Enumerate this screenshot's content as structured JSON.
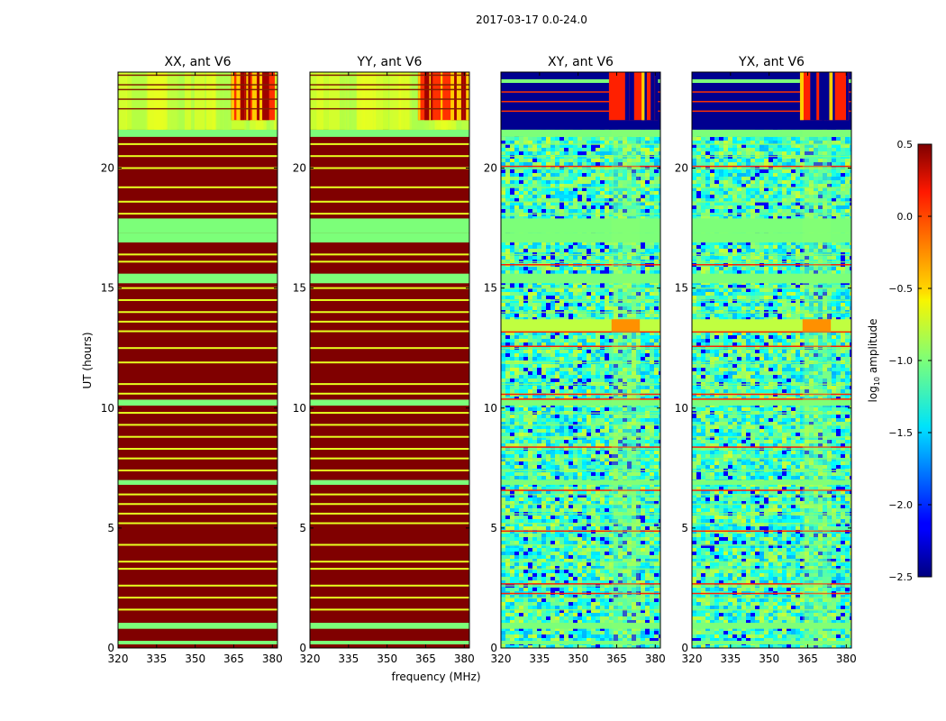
{
  "figure": {
    "suptitle": "2017-03-17 0.0-24.0",
    "ylabel": "UT (hours)",
    "xlabel": "frequency (MHz)"
  },
  "chart_data": [
    {
      "type": "heatmap",
      "title": "XX, ant V6",
      "xlim": [
        320,
        382
      ],
      "ylim": [
        0,
        24
      ],
      "xticks": [
        320,
        335,
        350,
        365,
        380
      ],
      "xtick_labels": [
        "320",
        "335",
        "350",
        "365",
        "380"
      ],
      "yticks": [
        0,
        5,
        10,
        15,
        20
      ],
      "ytick_labels": [
        "0",
        "5",
        "10",
        "15",
        "20"
      ],
      "pattern": "autocorr"
    },
    {
      "type": "heatmap",
      "title": "YY, ant V6",
      "xlim": [
        320,
        382
      ],
      "ylim": [
        0,
        24
      ],
      "xticks": [
        320,
        335,
        350,
        365,
        380
      ],
      "xtick_labels": [
        "320",
        "335",
        "350",
        "365",
        "380"
      ],
      "yticks": [
        0,
        5,
        10,
        15,
        20
      ],
      "ytick_labels": [
        "0",
        "5",
        "10",
        "15",
        "20"
      ],
      "pattern": "autocorr"
    },
    {
      "type": "heatmap",
      "title": "XY, ant V6",
      "xlim": [
        320,
        382
      ],
      "ylim": [
        0,
        24
      ],
      "xticks": [
        320,
        335,
        350,
        365,
        380
      ],
      "xtick_labels": [
        "320",
        "335",
        "350",
        "365",
        "380"
      ],
      "yticks": [
        0,
        5,
        10,
        15,
        20
      ],
      "ytick_labels": [
        "0",
        "5",
        "10",
        "15",
        "20"
      ],
      "pattern": "crosscorr"
    },
    {
      "type": "heatmap",
      "title": "YX, ant V6",
      "xlim": [
        320,
        382
      ],
      "ylim": [
        0,
        24
      ],
      "xticks": [
        320,
        335,
        350,
        365,
        380
      ],
      "xtick_labels": [
        "320",
        "335",
        "350",
        "365",
        "380"
      ],
      "yticks": [
        0,
        5,
        10,
        15,
        20
      ],
      "ytick_labels": [
        "0",
        "5",
        "10",
        "15",
        "20"
      ],
      "pattern": "crosscorr"
    }
  ],
  "colorbar": {
    "label": "log",
    "label_sub": "10",
    "label_suffix": " amplitude",
    "range": [
      -2.5,
      0.5
    ],
    "ticks": [
      0.5,
      0.0,
      -0.5,
      -1.0,
      -1.5,
      -2.0,
      -2.5
    ],
    "tick_labels": [
      "0.5",
      "0.0",
      "−0.5",
      "−1.0",
      "−1.5",
      "−2.0",
      "−2.5"
    ],
    "colormap": "jet"
  }
}
